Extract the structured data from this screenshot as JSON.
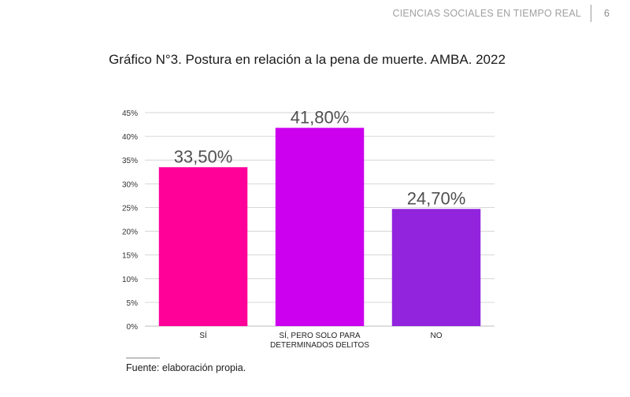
{
  "header": {
    "title": "CIENCIAS SOCIALES EN TIEMPO REAL",
    "page_number": "6"
  },
  "chart_data": {
    "type": "bar",
    "title": "Gráfico N°3. Postura en relación a la pena de muerte. AMBA. 2022",
    "xlabel": "",
    "ylabel": "",
    "ylim": [
      0,
      45
    ],
    "yticks": [
      "0%",
      "5%",
      "10%",
      "15%",
      "20%",
      "25%",
      "30%",
      "35%",
      "40%",
      "45%"
    ],
    "grid": true,
    "legend": "none",
    "categories": [
      [
        "SÍ"
      ],
      [
        "SÍ, PERO SOLO PARA",
        "DETERMINADOS DELITOS"
      ],
      [
        "NO"
      ]
    ],
    "values": [
      33.5,
      41.8,
      24.7
    ],
    "data_labels": [
      "33,50%",
      "41,80%",
      "24,70%"
    ],
    "colors": [
      "#ff0099",
      "#cc00ee",
      "#9124dc"
    ]
  },
  "footnote": "Fuente: elaboración propia."
}
